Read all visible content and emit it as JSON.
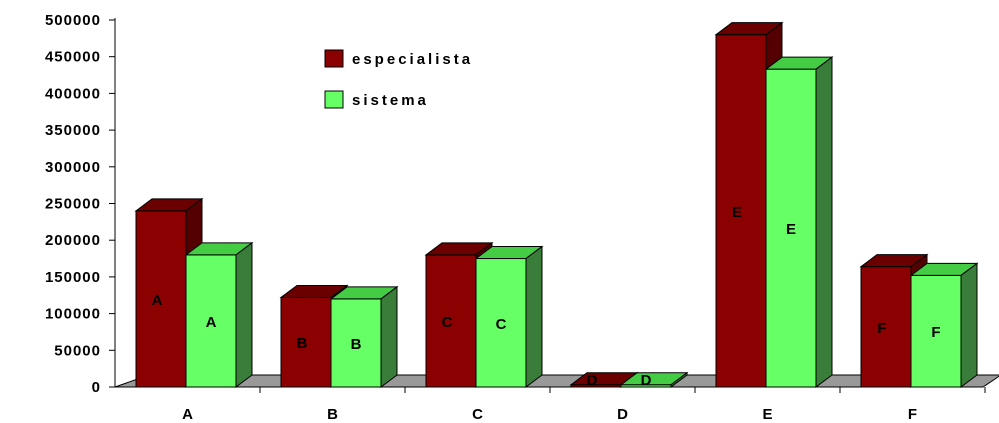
{
  "chart_data": {
    "type": "bar",
    "style": "3d-clustered",
    "categories": [
      "A",
      "B",
      "C",
      "D",
      "E",
      "F"
    ],
    "series": [
      {
        "name": "especialista",
        "values": [
          240000,
          122000,
          180000,
          3000,
          480000,
          164000
        ],
        "color": "#8B0000",
        "bar_labels": [
          "A",
          "B",
          "C",
          "D",
          "E",
          "F"
        ]
      },
      {
        "name": "sistema",
        "values": [
          180000,
          120000,
          175000,
          3000,
          433000,
          152000
        ],
        "color": "#66FF66",
        "bar_labels": [
          "A",
          "B",
          "C",
          "D",
          "E",
          "F"
        ]
      }
    ],
    "yticks": [
      "0",
      "50000",
      "100000",
      "150000",
      "200000",
      "250000",
      "300000",
      "350000",
      "400000",
      "450000",
      "500000"
    ],
    "ylim": [
      0,
      500000
    ],
    "grid": false,
    "legend_position": "top-center",
    "colors": {
      "floor": "#999999",
      "especialista_top": "#6A0000",
      "especialista_side": "#550000",
      "sistema_top": "#44CC44",
      "sistema_side": "#3A7D3A"
    }
  }
}
